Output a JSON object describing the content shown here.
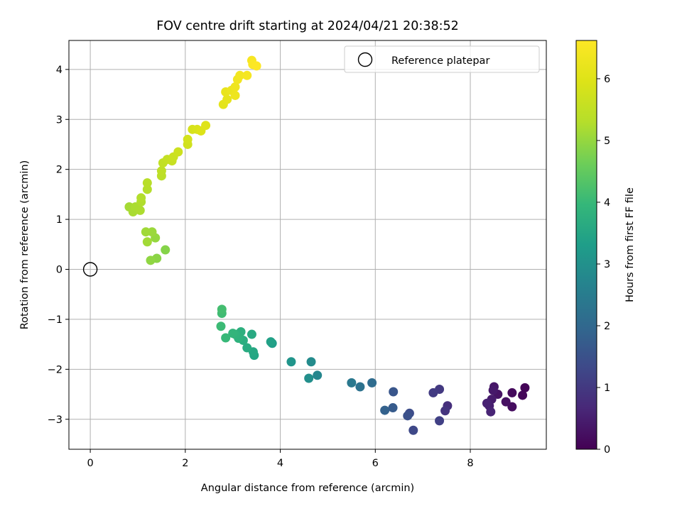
{
  "chart_data": {
    "type": "scatter",
    "title": "FOV centre drift starting at 2024/04/21 20:38:52",
    "xlabel": "Angular distance from reference (arcmin)",
    "ylabel": "Rotation from reference (arcmin)",
    "xlim": [
      -0.45,
      9.6
    ],
    "ylim": [
      -3.6,
      4.58
    ],
    "xticks": [
      0,
      2,
      4,
      6,
      8
    ],
    "yticks": [
      -3,
      -2,
      -1,
      0,
      1,
      2,
      3,
      4
    ],
    "xtick_labels": [
      "0",
      "2",
      "4",
      "6",
      "8"
    ],
    "ytick_labels": [
      "−3",
      "−2",
      "−1",
      "0",
      "1",
      "2",
      "3",
      "4"
    ],
    "grid": true,
    "legend": {
      "placement": "upper right",
      "entries": [
        "Reference platepar"
      ]
    },
    "reference": {
      "x": 0,
      "y": 0
    },
    "colorbar": {
      "label": "Hours from first FF file",
      "range": [
        0,
        6.62
      ],
      "ticks": [
        0,
        1,
        2,
        3,
        4,
        5,
        6
      ],
      "tick_labels": [
        "0",
        "1",
        "2",
        "3",
        "4",
        "5",
        "6"
      ],
      "colormap": "viridis"
    },
    "points": [
      {
        "x": 9.15,
        "y": -2.37,
        "t": 0.05
      },
      {
        "x": 9.1,
        "y": -2.52,
        "t": 0.1
      },
      {
        "x": 8.88,
        "y": -2.47,
        "t": 0.15
      },
      {
        "x": 8.88,
        "y": -2.75,
        "t": 0.2
      },
      {
        "x": 8.75,
        "y": -2.65,
        "t": 0.25
      },
      {
        "x": 8.58,
        "y": -2.5,
        "t": 0.3
      },
      {
        "x": 8.5,
        "y": -2.35,
        "t": 0.35
      },
      {
        "x": 8.48,
        "y": -2.42,
        "t": 0.4
      },
      {
        "x": 8.45,
        "y": -2.6,
        "t": 0.45
      },
      {
        "x": 8.4,
        "y": -2.73,
        "t": 0.5
      },
      {
        "x": 8.35,
        "y": -2.68,
        "t": 0.55
      },
      {
        "x": 8.43,
        "y": -2.85,
        "t": 0.6
      },
      {
        "x": 7.52,
        "y": -2.73,
        "t": 0.8
      },
      {
        "x": 7.47,
        "y": -2.83,
        "t": 0.9
      },
      {
        "x": 7.35,
        "y": -2.4,
        "t": 1.0
      },
      {
        "x": 7.22,
        "y": -2.47,
        "t": 1.05
      },
      {
        "x": 7.35,
        "y": -3.03,
        "t": 1.15
      },
      {
        "x": 6.8,
        "y": -3.22,
        "t": 1.3
      },
      {
        "x": 6.72,
        "y": -2.88,
        "t": 1.4
      },
      {
        "x": 6.68,
        "y": -2.93,
        "t": 1.5
      },
      {
        "x": 6.38,
        "y": -2.45,
        "t": 1.6
      },
      {
        "x": 6.37,
        "y": -2.77,
        "t": 1.7
      },
      {
        "x": 6.2,
        "y": -2.82,
        "t": 1.85
      },
      {
        "x": 5.93,
        "y": -2.27,
        "t": 2.1
      },
      {
        "x": 5.68,
        "y": -2.35,
        "t": 2.25
      },
      {
        "x": 5.5,
        "y": -2.27,
        "t": 2.4
      },
      {
        "x": 4.78,
        "y": -2.12,
        "t": 2.75
      },
      {
        "x": 4.65,
        "y": -1.85,
        "t": 2.85
      },
      {
        "x": 4.6,
        "y": -2.18,
        "t": 2.95
      },
      {
        "x": 4.23,
        "y": -1.85,
        "t": 3.1
      },
      {
        "x": 3.83,
        "y": -1.48,
        "t": 3.3
      },
      {
        "x": 3.8,
        "y": -1.45,
        "t": 3.4
      },
      {
        "x": 3.45,
        "y": -1.72,
        "t": 3.5
      },
      {
        "x": 3.43,
        "y": -1.65,
        "t": 3.55
      },
      {
        "x": 3.4,
        "y": -1.3,
        "t": 3.6
      },
      {
        "x": 3.3,
        "y": -1.57,
        "t": 3.65
      },
      {
        "x": 3.22,
        "y": -1.42,
        "t": 3.7
      },
      {
        "x": 3.17,
        "y": -1.25,
        "t": 3.75
      },
      {
        "x": 3.12,
        "y": -1.38,
        "t": 3.8
      },
      {
        "x": 3.05,
        "y": -1.3,
        "t": 3.85
      },
      {
        "x": 3.0,
        "y": -1.28,
        "t": 3.9
      },
      {
        "x": 2.85,
        "y": -1.37,
        "t": 4.0
      },
      {
        "x": 2.75,
        "y": -1.14,
        "t": 4.05
      },
      {
        "x": 2.77,
        "y": -0.88,
        "t": 4.1
      },
      {
        "x": 2.77,
        "y": -0.8,
        "t": 4.15
      },
      {
        "x": 1.58,
        "y": 0.39,
        "t": 4.85
      },
      {
        "x": 1.4,
        "y": 0.22,
        "t": 4.9
      },
      {
        "x": 1.27,
        "y": 0.18,
        "t": 4.95
      },
      {
        "x": 1.37,
        "y": 0.63,
        "t": 5.0
      },
      {
        "x": 1.3,
        "y": 0.75,
        "t": 5.05
      },
      {
        "x": 1.17,
        "y": 0.75,
        "t": 5.1
      },
      {
        "x": 1.2,
        "y": 0.55,
        "t": 5.12
      },
      {
        "x": 0.82,
        "y": 1.25,
        "t": 5.15
      },
      {
        "x": 0.9,
        "y": 1.15,
        "t": 5.18
      },
      {
        "x": 0.95,
        "y": 1.25,
        "t": 5.2
      },
      {
        "x": 1.05,
        "y": 1.18,
        "t": 5.22
      },
      {
        "x": 1.07,
        "y": 1.35,
        "t": 5.25
      },
      {
        "x": 1.07,
        "y": 1.43,
        "t": 5.28
      },
      {
        "x": 1.2,
        "y": 1.6,
        "t": 5.3
      },
      {
        "x": 1.2,
        "y": 1.73,
        "t": 5.35
      },
      {
        "x": 1.5,
        "y": 1.87,
        "t": 5.4
      },
      {
        "x": 1.5,
        "y": 1.97,
        "t": 5.45
      },
      {
        "x": 1.53,
        "y": 2.13,
        "t": 5.5
      },
      {
        "x": 1.62,
        "y": 2.2,
        "t": 5.55
      },
      {
        "x": 1.72,
        "y": 2.17,
        "t": 5.6
      },
      {
        "x": 1.75,
        "y": 2.25,
        "t": 5.65
      },
      {
        "x": 1.85,
        "y": 2.35,
        "t": 5.7
      },
      {
        "x": 2.05,
        "y": 2.5,
        "t": 5.75
      },
      {
        "x": 2.05,
        "y": 2.6,
        "t": 5.8
      },
      {
        "x": 2.15,
        "y": 2.8,
        "t": 5.85
      },
      {
        "x": 2.25,
        "y": 2.8,
        "t": 5.9
      },
      {
        "x": 2.33,
        "y": 2.77,
        "t": 5.95
      },
      {
        "x": 2.43,
        "y": 2.88,
        "t": 6.0
      },
      {
        "x": 2.8,
        "y": 3.3,
        "t": 6.1
      },
      {
        "x": 2.88,
        "y": 3.4,
        "t": 6.15
      },
      {
        "x": 2.85,
        "y": 3.55,
        "t": 6.2
      },
      {
        "x": 2.97,
        "y": 3.58,
        "t": 6.25
      },
      {
        "x": 3.05,
        "y": 3.48,
        "t": 6.3
      },
      {
        "x": 3.05,
        "y": 3.65,
        "t": 6.33
      },
      {
        "x": 3.1,
        "y": 3.8,
        "t": 6.37
      },
      {
        "x": 3.15,
        "y": 3.88,
        "t": 6.4
      },
      {
        "x": 3.3,
        "y": 3.88,
        "t": 6.45
      },
      {
        "x": 3.4,
        "y": 4.18,
        "t": 6.5
      },
      {
        "x": 3.42,
        "y": 4.1,
        "t": 6.55
      },
      {
        "x": 3.5,
        "y": 4.07,
        "t": 6.6
      }
    ]
  }
}
